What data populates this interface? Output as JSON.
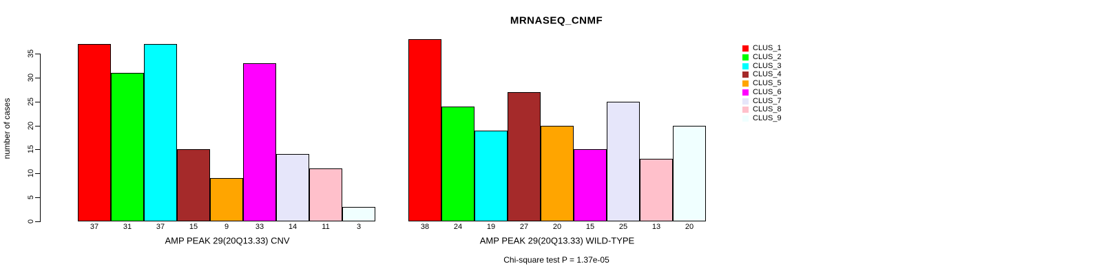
{
  "chart_data": {
    "type": "bar",
    "title": "MRNASEQ_CNMF",
    "ylabel": "number of cases",
    "ylim": [
      0,
      38
    ],
    "yticks": [
      0,
      5,
      10,
      15,
      20,
      25,
      30,
      35
    ],
    "grid": false,
    "legend_position": "right",
    "categories": [
      "CLUS_1",
      "CLUS_2",
      "CLUS_3",
      "CLUS_4",
      "CLUS_5",
      "CLUS_6",
      "CLUS_7",
      "CLUS_8",
      "CLUS_9"
    ],
    "colors": [
      "#FF0000",
      "#00FF00",
      "#00FFFF",
      "#A52A2A",
      "#FFA500",
      "#FF00FF",
      "#E6E6FA",
      "#FFC0CB",
      "#F0FFFF"
    ],
    "panels": [
      {
        "xlabel": "AMP PEAK 29(20Q13.33) CNV",
        "values": [
          37,
          31,
          37,
          15,
          9,
          33,
          14,
          11,
          3
        ]
      },
      {
        "xlabel": "AMP PEAK 29(20Q13.33) WILD-TYPE",
        "values": [
          38,
          24,
          19,
          27,
          20,
          15,
          25,
          13,
          20
        ]
      }
    ],
    "annotation": "Chi-square test P = 1.37e-05"
  }
}
